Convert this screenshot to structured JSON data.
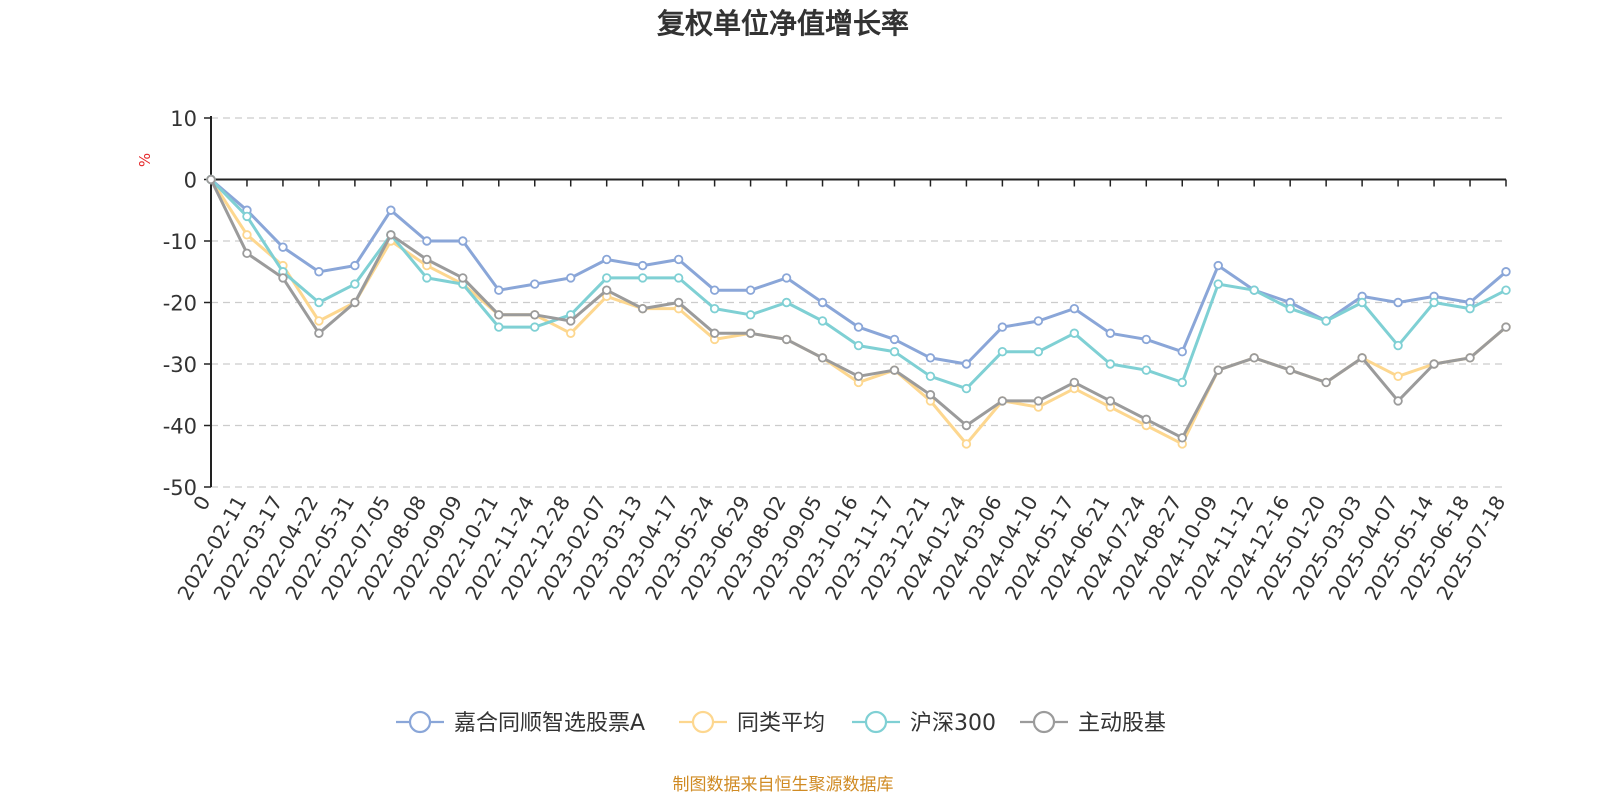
{
  "chart_data": {
    "type": "line",
    "title": "复权单位净值增长率",
    "ylabel": "%",
    "xlabel": "",
    "ylim": [
      -50,
      10
    ],
    "yticks": [
      10,
      0,
      -10,
      -20,
      -30,
      -40,
      -50
    ],
    "grid": true,
    "legend_position": "bottom",
    "x": [
      "0",
      "2022-02-11",
      "2022-03-17",
      "2022-04-22",
      "2022-05-31",
      "2022-07-05",
      "2022-08-08",
      "2022-09-09",
      "2022-10-21",
      "2022-11-24",
      "2022-12-28",
      "2023-02-07",
      "2023-03-13",
      "2023-04-17",
      "2023-05-24",
      "2023-06-29",
      "2023-08-02",
      "2023-09-05",
      "2023-10-16",
      "2023-11-17",
      "2023-12-21",
      "2024-01-24",
      "2024-03-06",
      "2024-04-10",
      "2024-05-17",
      "2024-06-21",
      "2024-07-24",
      "2024-08-27",
      "2024-10-09",
      "2024-11-12",
      "2024-12-16",
      "2025-01-20",
      "2025-03-03",
      "2025-04-07",
      "2025-05-14",
      "2025-06-18",
      "2025-07-18"
    ],
    "series": [
      {
        "name": "嘉合同顺智选股票A",
        "color": "#8aa6d8",
        "values": [
          0,
          -5,
          -11,
          -15,
          -14,
          -5,
          -10,
          -10,
          -18,
          -17,
          -16,
          -13,
          -14,
          -13,
          -18,
          -18,
          -16,
          -20,
          -24,
          -26,
          -29,
          -30,
          -24,
          -23,
          -21,
          -25,
          -26,
          -28,
          -14,
          -18,
          -20,
          -23,
          -19,
          -20,
          -19,
          -20,
          -15
        ]
      },
      {
        "name": "同类平均",
        "color": "#fdd78f",
        "values": [
          0,
          -9,
          -14,
          -23,
          -20,
          -10,
          -14,
          -17,
          -22,
          -22,
          -25,
          -19,
          -21,
          -21,
          -26,
          -25,
          -26,
          -29,
          -33,
          -31,
          -36,
          -43,
          -36,
          -37,
          -34,
          -37,
          -40,
          -43,
          -31,
          -29,
          -31,
          -33,
          -29,
          -32,
          -30,
          -29,
          -24
        ]
      },
      {
        "name": "沪深300",
        "color": "#7fd0d4",
        "values": [
          0,
          -6,
          -15,
          -20,
          -17,
          -9,
          -16,
          -17,
          -24,
          -24,
          -22,
          -16,
          -16,
          -16,
          -21,
          -22,
          -20,
          -23,
          -27,
          -28,
          -32,
          -34,
          -28,
          -28,
          -25,
          -30,
          -31,
          -33,
          -17,
          -18,
          -21,
          -23,
          -20,
          -27,
          -20,
          -21,
          -18
        ]
      },
      {
        "name": "主动股基",
        "color": "#9b9b9b",
        "values": [
          0,
          -12,
          -16,
          -25,
          -20,
          -9,
          -13,
          -16,
          -22,
          -22,
          -23,
          -18,
          -21,
          -20,
          -25,
          -25,
          -26,
          -29,
          -32,
          -31,
          -35,
          -40,
          -36,
          -36,
          -33,
          -36,
          -39,
          -42,
          -31,
          -29,
          -31,
          -33,
          -29,
          -36,
          -30,
          -29,
          -24
        ]
      }
    ]
  },
  "footer": {
    "source_note": "制图数据来自恒生聚源数据库"
  },
  "colors": {
    "axis": "#222222",
    "grid": "#cccccc",
    "ylabel": "#e5292b",
    "source_note": "#d08b24"
  }
}
